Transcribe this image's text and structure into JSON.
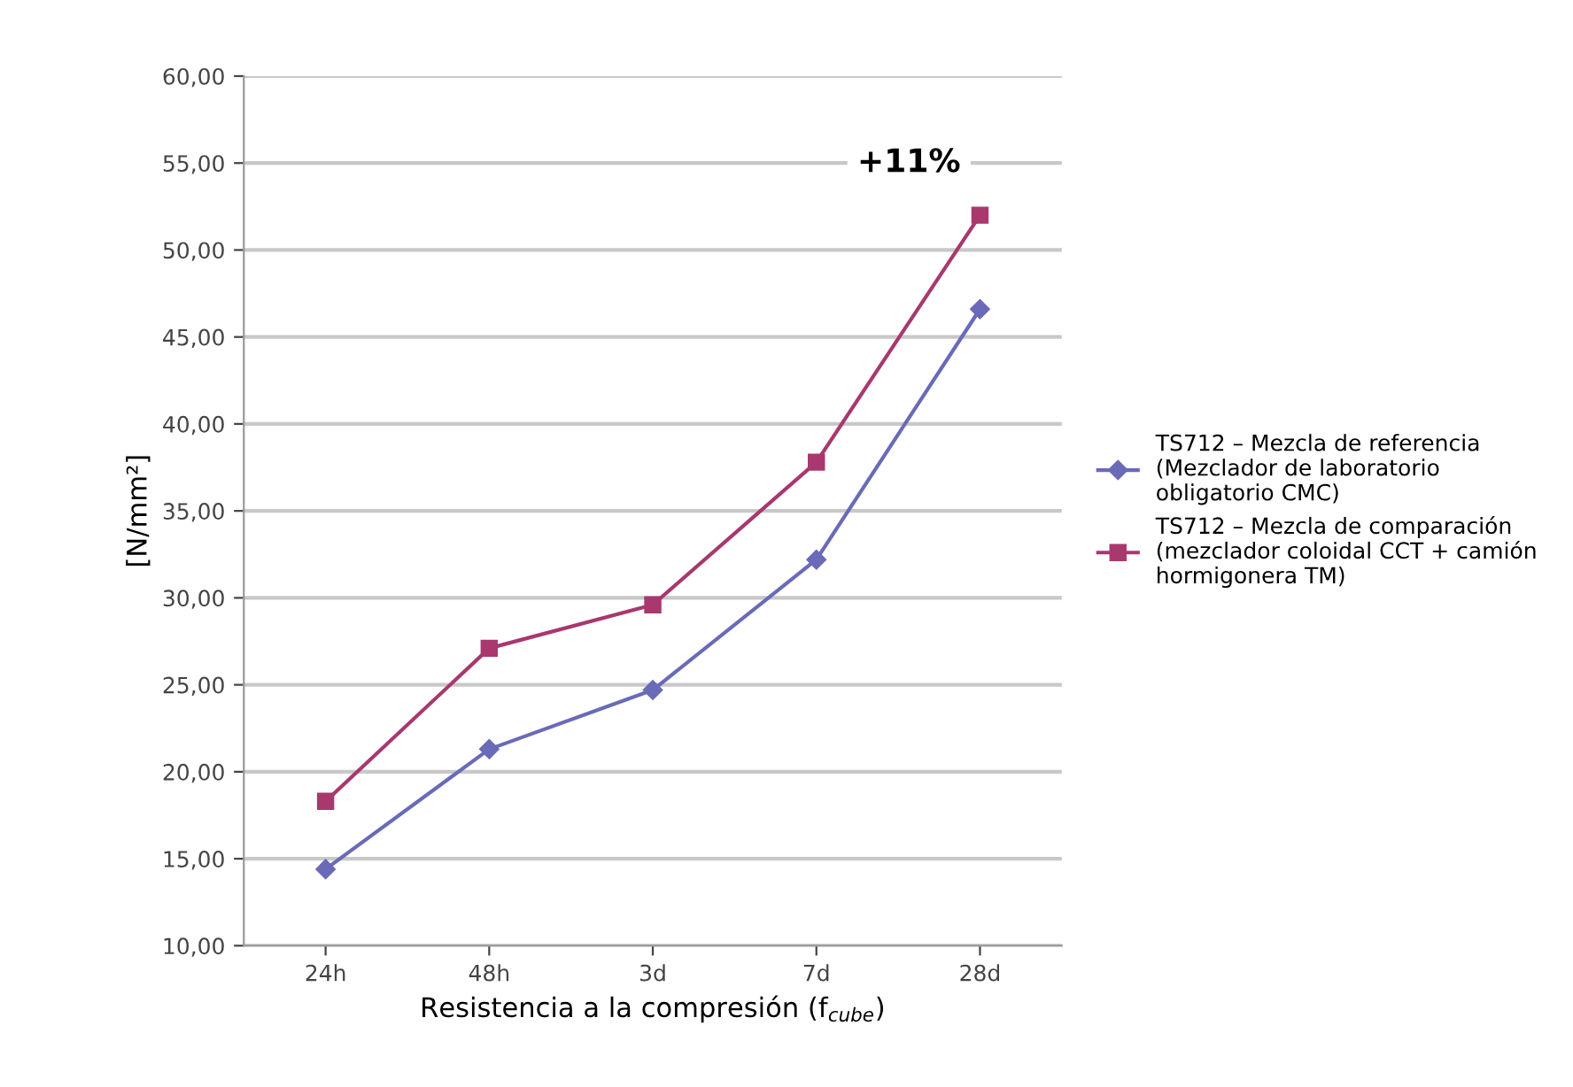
{
  "chart_data": {
    "type": "line",
    "xlabel": "Resistencia a la compresión (f$_{cube}$)",
    "ylabel": "[N/mm²]",
    "categories": [
      "24h",
      "48h",
      "3d",
      "7d",
      "28d"
    ],
    "series": [
      {
        "name": "TS712 – Mezcla de referencia\n(Mezclador de laboratorio\nobligatorio CMC)",
        "color": "#6a6ab8",
        "marker": "diamond",
        "values": [
          14.4,
          21.3,
          24.7,
          32.2,
          46.6
        ]
      },
      {
        "name": "TS712 – Mezcla de comparación\n(mezclador coloidal CCT + camión\nhormigonera TM)",
        "color": "#a8386e",
        "marker": "square",
        "values": [
          18.3,
          27.1,
          29.6,
          37.8,
          52.0
        ]
      }
    ],
    "annotations": [
      "+11%"
    ],
    "ylim": [
      10,
      60
    ],
    "yticks": [
      {
        "value": 10,
        "label": "10,00"
      },
      {
        "value": 15,
        "label": "15,00"
      },
      {
        "value": 20,
        "label": "20,00"
      },
      {
        "value": 25,
        "label": "25,00"
      },
      {
        "value": 30,
        "label": "30,00"
      },
      {
        "value": 35,
        "label": "35,00"
      },
      {
        "value": 40,
        "label": "40,00"
      },
      {
        "value": 45,
        "label": "45,00"
      },
      {
        "value": 50,
        "label": "50,00"
      },
      {
        "value": 55,
        "label": "55,00"
      },
      {
        "value": 60,
        "label": "60,00"
      }
    ],
    "grid": "y",
    "legend": "right",
    "line_style": "solid"
  }
}
